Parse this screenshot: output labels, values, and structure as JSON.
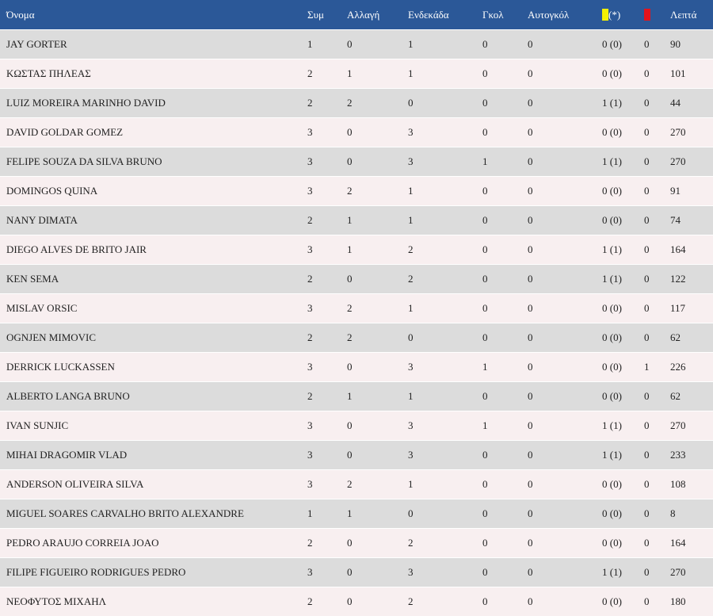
{
  "colors": {
    "header_bg": "#2b5898",
    "yellow_card": "#f3f000",
    "red_card": "#e3141c"
  },
  "headers": {
    "name": "Όνομα",
    "apps": "Συμ",
    "sub": "Αλλαγή",
    "starting": "Ενδεκάδα",
    "goals": "Γκολ",
    "own_goals": "Αυτογκόλ",
    "yellow_suffix": "(*)",
    "minutes": "Λεπτά"
  },
  "rows": [
    {
      "name": "JAY GORTER",
      "apps": "1",
      "sub": "0",
      "starting": "1",
      "goals": "0",
      "own_goals": "0",
      "yellow": "0 (0)",
      "red": "0",
      "minutes": "90"
    },
    {
      "name": "ΚΩΣΤΑΣ ΠΗΛΕΑΣ",
      "apps": "2",
      "sub": "1",
      "starting": "1",
      "goals": "0",
      "own_goals": "0",
      "yellow": "0 (0)",
      "red": "0",
      "minutes": "101"
    },
    {
      "name": "LUIZ MOREIRA MARINHO DAVID",
      "apps": "2",
      "sub": "2",
      "starting": "0",
      "goals": "0",
      "own_goals": "0",
      "yellow": "1 (1)",
      "red": "0",
      "minutes": "44"
    },
    {
      "name": "DAVID GOLDAR GOMEZ",
      "apps": "3",
      "sub": "0",
      "starting": "3",
      "goals": "0",
      "own_goals": "0",
      "yellow": "0 (0)",
      "red": "0",
      "minutes": "270"
    },
    {
      "name": "FELIPE SOUZA DA SILVA BRUNO",
      "apps": "3",
      "sub": "0",
      "starting": "3",
      "goals": "1",
      "own_goals": "0",
      "yellow": "1 (1)",
      "red": "0",
      "minutes": "270"
    },
    {
      "name": "DOMINGOS QUINA",
      "apps": "3",
      "sub": "2",
      "starting": "1",
      "goals": "0",
      "own_goals": "0",
      "yellow": "0 (0)",
      "red": "0",
      "minutes": "91"
    },
    {
      "name": "NANY DIMATA",
      "apps": "2",
      "sub": "1",
      "starting": "1",
      "goals": "0",
      "own_goals": "0",
      "yellow": "0 (0)",
      "red": "0",
      "minutes": "74"
    },
    {
      "name": "DIEGO ALVES DE BRITO JAIR",
      "apps": "3",
      "sub": "1",
      "starting": "2",
      "goals": "0",
      "own_goals": "0",
      "yellow": "1 (1)",
      "red": "0",
      "minutes": "164"
    },
    {
      "name": "KEN SEMA",
      "apps": "2",
      "sub": "0",
      "starting": "2",
      "goals": "0",
      "own_goals": "0",
      "yellow": "1 (1)",
      "red": "0",
      "minutes": "122"
    },
    {
      "name": "MISLAV ORSIC",
      "apps": "3",
      "sub": "2",
      "starting": "1",
      "goals": "0",
      "own_goals": "0",
      "yellow": "0 (0)",
      "red": "0",
      "minutes": "117"
    },
    {
      "name": "OGNJEN MIMOVIC",
      "apps": "2",
      "sub": "2",
      "starting": "0",
      "goals": "0",
      "own_goals": "0",
      "yellow": "0 (0)",
      "red": "0",
      "minutes": "62"
    },
    {
      "name": "DERRICK LUCKASSEN",
      "apps": "3",
      "sub": "0",
      "starting": "3",
      "goals": "1",
      "own_goals": "0",
      "yellow": "0 (0)",
      "red": "1",
      "minutes": "226"
    },
    {
      "name": "ALBERTO LANGA BRUNO",
      "apps": "2",
      "sub": "1",
      "starting": "1",
      "goals": "0",
      "own_goals": "0",
      "yellow": "0 (0)",
      "red": "0",
      "minutes": "62"
    },
    {
      "name": "IVAN SUNJIC",
      "apps": "3",
      "sub": "0",
      "starting": "3",
      "goals": "1",
      "own_goals": "0",
      "yellow": "1 (1)",
      "red": "0",
      "minutes": "270"
    },
    {
      "name": "MIHAI DRAGOMIR VLAD",
      "apps": "3",
      "sub": "0",
      "starting": "3",
      "goals": "0",
      "own_goals": "0",
      "yellow": "1 (1)",
      "red": "0",
      "minutes": "233"
    },
    {
      "name": "ANDERSON OLIVEIRA SILVA",
      "apps": "3",
      "sub": "2",
      "starting": "1",
      "goals": "0",
      "own_goals": "0",
      "yellow": "0 (0)",
      "red": "0",
      "minutes": "108"
    },
    {
      "name": "MIGUEL SOARES CARVALHO BRITO ALEXANDRE",
      "apps": "1",
      "sub": "1",
      "starting": "0",
      "goals": "0",
      "own_goals": "0",
      "yellow": "0 (0)",
      "red": "0",
      "minutes": "8"
    },
    {
      "name": "PEDRO ARAUJO CORREIA JOAO",
      "apps": "2",
      "sub": "0",
      "starting": "2",
      "goals": "0",
      "own_goals": "0",
      "yellow": "0 (0)",
      "red": "0",
      "minutes": "164"
    },
    {
      "name": "FILIPE FIGUEIRO RODRIGUES PEDRO",
      "apps": "3",
      "sub": "0",
      "starting": "3",
      "goals": "0",
      "own_goals": "0",
      "yellow": "1 (1)",
      "red": "0",
      "minutes": "270"
    },
    {
      "name": "ΝΕΟΦΥΤΟΣ ΜΙΧΑΗΛ",
      "apps": "2",
      "sub": "0",
      "starting": "2",
      "goals": "0",
      "own_goals": "0",
      "yellow": "0 (0)",
      "red": "0",
      "minutes": "180"
    }
  ]
}
